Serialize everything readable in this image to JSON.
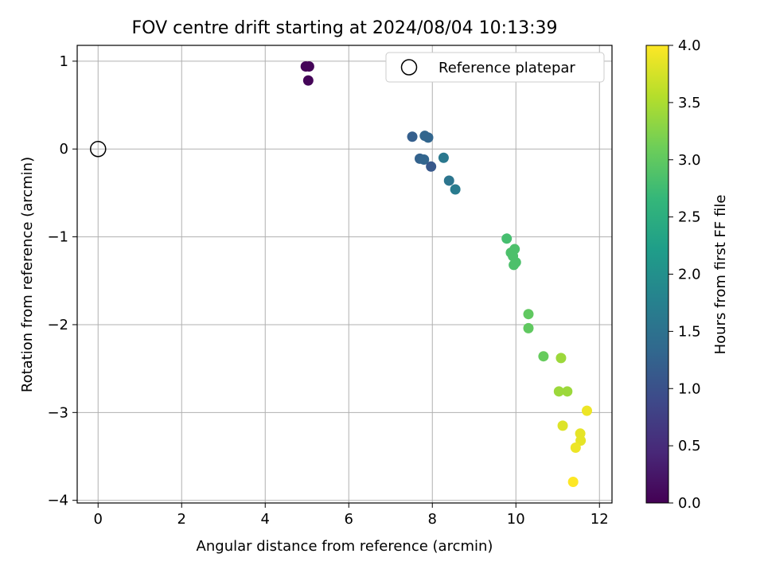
{
  "chart_data": {
    "type": "scatter",
    "title": "FOV centre drift starting at 2024/08/04 10:13:39",
    "xlabel": "Angular distance from reference (arcmin)",
    "ylabel": "Rotation from reference (arcmin)",
    "xlim": [
      -0.5,
      12.3
    ],
    "ylim": [
      -4.03,
      1.18
    ],
    "xticks": [
      0,
      2,
      4,
      6,
      8,
      10,
      12
    ],
    "xtick_labels": [
      "0",
      "2",
      "4",
      "6",
      "8",
      "10",
      "12"
    ],
    "yticks": [
      1,
      0,
      -1,
      -2,
      -3,
      -4
    ],
    "ytick_labels": [
      "1",
      "0",
      "−1",
      "−2",
      "−3",
      "−4"
    ],
    "grid": true,
    "colormap": "viridis",
    "colormap_stops": [
      "#440154",
      "#482878",
      "#3e4989",
      "#31688e",
      "#26828e",
      "#1f9e89",
      "#35b779",
      "#6ece58",
      "#b5de2b",
      "#fde725"
    ],
    "colorbar": {
      "label": "Hours from first FF file",
      "min": 0.0,
      "max": 4.0,
      "ticks": [
        0.0,
        0.5,
        1.0,
        1.5,
        2.0,
        2.5,
        3.0,
        3.5,
        4.0
      ],
      "tick_labels": [
        "0.0",
        "0.5",
        "1.0",
        "1.5",
        "2.0",
        "2.5",
        "3.0",
        "3.5",
        "4.0"
      ]
    },
    "legend": {
      "position": "top-right",
      "entries": [
        "Reference platepar"
      ]
    },
    "reference_point": {
      "name": "Reference platepar",
      "x": 0,
      "y": 0
    },
    "series": [
      {
        "points": [
          {
            "x": 4.97,
            "y": 0.94,
            "hours": 0.05
          },
          {
            "x": 5.05,
            "y": 0.94,
            "hours": 0.05
          },
          {
            "x": 5.03,
            "y": 0.78,
            "hours": 0.05
          },
          {
            "x": 7.52,
            "y": 0.14,
            "hours": 1.2
          },
          {
            "x": 7.82,
            "y": 0.15,
            "hours": 1.3
          },
          {
            "x": 7.9,
            "y": 0.13,
            "hours": 1.3
          },
          {
            "x": 7.7,
            "y": -0.11,
            "hours": 1.25
          },
          {
            "x": 7.8,
            "y": -0.12,
            "hours": 1.3
          },
          {
            "x": 7.97,
            "y": -0.2,
            "hours": 1.1
          },
          {
            "x": 8.27,
            "y": -0.1,
            "hours": 1.6
          },
          {
            "x": 8.4,
            "y": -0.36,
            "hours": 1.55
          },
          {
            "x": 8.55,
            "y": -0.46,
            "hours": 1.65
          },
          {
            "x": 9.78,
            "y": -1.02,
            "hours": 2.8
          },
          {
            "x": 9.97,
            "y": -1.14,
            "hours": 2.85
          },
          {
            "x": 9.88,
            "y": -1.18,
            "hours": 2.85
          },
          {
            "x": 9.93,
            "y": -1.22,
            "hours": 2.85
          },
          {
            "x": 10.0,
            "y": -1.29,
            "hours": 2.85
          },
          {
            "x": 9.95,
            "y": -1.32,
            "hours": 2.85
          },
          {
            "x": 10.3,
            "y": -1.88,
            "hours": 3.0
          },
          {
            "x": 10.3,
            "y": -2.04,
            "hours": 3.0
          },
          {
            "x": 10.66,
            "y": -2.36,
            "hours": 3.05
          },
          {
            "x": 11.08,
            "y": -2.38,
            "hours": 3.4
          },
          {
            "x": 11.03,
            "y": -2.76,
            "hours": 3.4
          },
          {
            "x": 11.23,
            "y": -2.76,
            "hours": 3.4
          },
          {
            "x": 11.7,
            "y": -2.98,
            "hours": 3.9
          },
          {
            "x": 11.12,
            "y": -3.15,
            "hours": 3.8
          },
          {
            "x": 11.54,
            "y": -3.24,
            "hours": 3.85
          },
          {
            "x": 11.55,
            "y": -3.32,
            "hours": 3.85
          },
          {
            "x": 11.43,
            "y": -3.4,
            "hours": 3.9
          },
          {
            "x": 11.37,
            "y": -3.79,
            "hours": 4.0
          }
        ]
      }
    ]
  }
}
